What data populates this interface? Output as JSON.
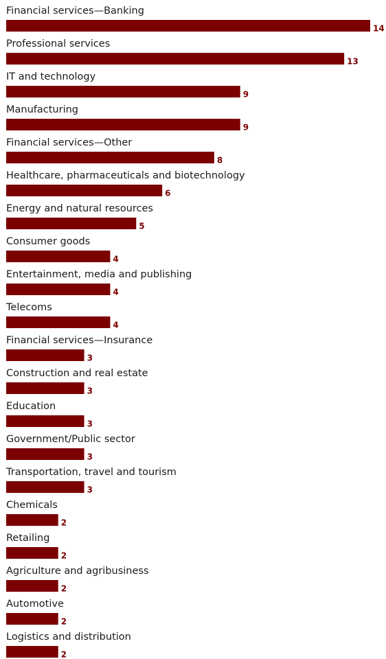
{
  "chart_data": {
    "type": "bar",
    "orientation": "horizontal",
    "title": "",
    "xlabel": "",
    "ylabel": "",
    "grid": false,
    "legend": "none",
    "xlim": [
      0,
      14
    ],
    "bar_color": "#7b0000",
    "value_label_color": "#7b0000",
    "categories": [
      "Financial services—Banking",
      "Professional services",
      "IT and technology",
      "Manufacturing",
      "Financial services—Other",
      "Healthcare, pharmaceuticals and biotechnology",
      "Energy and natural resources",
      "Consumer goods",
      "Entertainment, media and publishing",
      "Telecoms",
      "Financial services—Insurance",
      "Construction and real estate",
      "Education",
      "Government/Public sector",
      "Transportation, travel and tourism",
      "Chemicals",
      "Retailing",
      "Agriculture and agribusiness",
      "Automotive",
      "Logistics and distribution"
    ],
    "values": [
      14,
      13,
      9,
      9,
      8,
      6,
      5,
      4,
      4,
      4,
      3,
      3,
      3,
      3,
      3,
      2,
      2,
      2,
      2,
      2
    ]
  }
}
